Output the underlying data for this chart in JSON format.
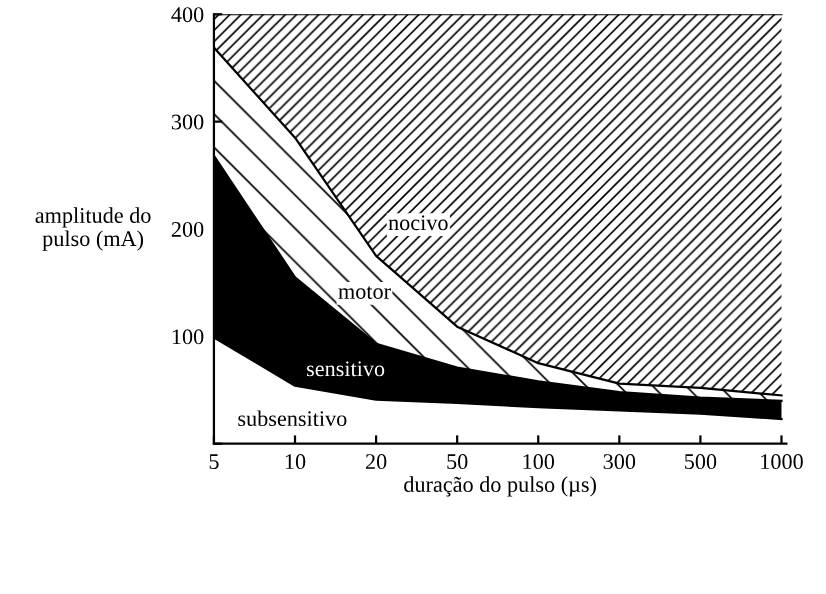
{
  "chart_data": {
    "type": "area",
    "stacked": true,
    "xlabel": "duração do pulso (µs)",
    "ylabel": "amplitude do\npulso (mA)",
    "categories": [
      "5",
      "10",
      "20",
      "50",
      "100",
      "300",
      "500",
      "1000"
    ],
    "ylim": [
      0,
      400
    ],
    "yticks": [
      {
        "value": 0,
        "label": null
      },
      100,
      200,
      300,
      400
    ],
    "grid": false,
    "legend": false,
    "series": [
      {
        "name": "subsensitivo",
        "color": "#ffffff",
        "values": [
          99,
          54,
          41,
          38,
          34,
          31,
          28,
          23
        ]
      },
      {
        "name": "sensitivo",
        "color": "#000000",
        "values": [
          169,
          101,
          52,
          33,
          24,
          17,
          15,
          17
        ]
      },
      {
        "name": "motor",
        "color": "#ffffff",
        "values": [
          101,
          130,
          82,
          38,
          17,
          8,
          9,
          5
        ]
      },
      {
        "name": "nocivo",
        "color": "#ffffff",
        "values": [
          31,
          115,
          225,
          291,
          325,
          344,
          348,
          355
        ]
      }
    ]
  }
}
